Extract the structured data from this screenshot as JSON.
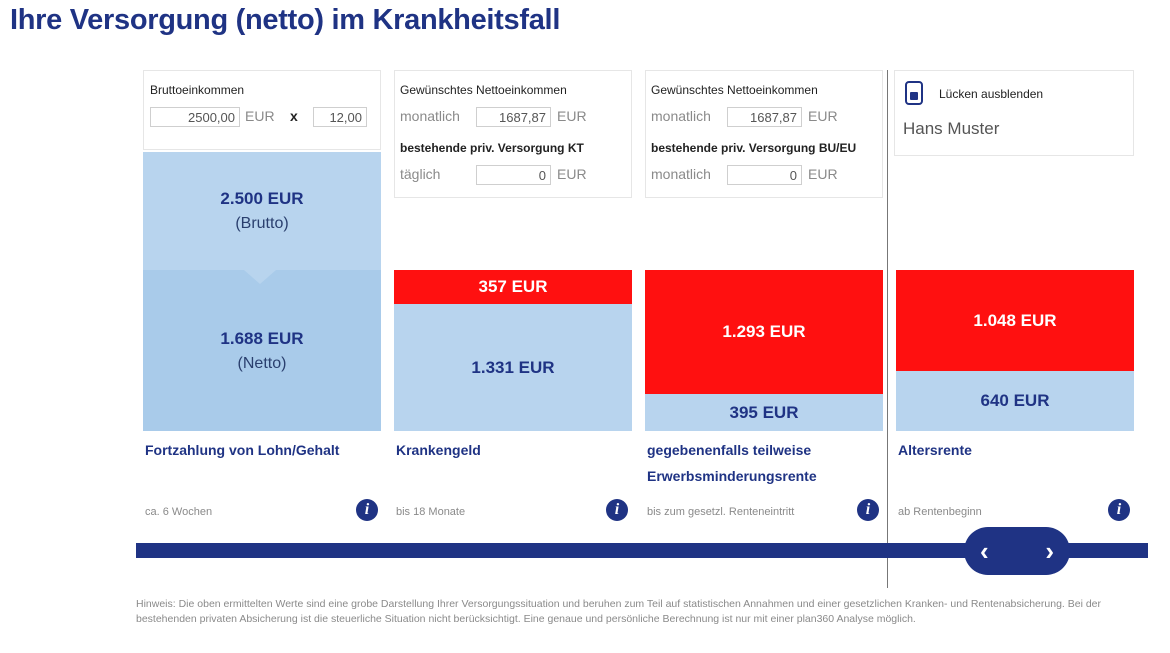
{
  "title": "Ihre Versorgung (netto) im Krankheitsfall",
  "columns": [
    {
      "header": {
        "label1": "Bruttoeinkommen",
        "gross_value": "2500,00",
        "currency": "EUR",
        "times": "x",
        "months_value": "12,00"
      },
      "top_amount": "2.500 EUR",
      "top_note": "(Brutto)",
      "bottom_amount": "1.688 EUR",
      "bottom_note": "(Netto)",
      "category": "Fortzahlung von Lohn/Gehalt",
      "duration": "ca. 6 Wochen"
    },
    {
      "header": {
        "label1": "Gewünschtes Nettoeinkommen",
        "period1": "monatlich",
        "value1": "1687,87",
        "currency1": "EUR",
        "label2": "bestehende priv. Versorgung KT",
        "period2": "täglich",
        "value2": "0",
        "currency2": "EUR"
      },
      "gap_amount": "357 EUR",
      "covered_amount": "1.331 EUR",
      "category": "Krankengeld",
      "duration": "bis 18 Monate"
    },
    {
      "header": {
        "label1": "Gewünschtes Nettoeinkommen",
        "period1": "monatlich",
        "value1": "1687,87",
        "currency1": "EUR",
        "label2": "bestehende priv. Versorgung BU/EU",
        "period2": "monatlich",
        "value2": "0",
        "currency2": "EUR"
      },
      "gap_amount": "1.293 EUR",
      "covered_amount": "395 EUR",
      "category": "gegebenenfalls teilweise Erwerbsminderungsrente",
      "duration": "bis zum gesetzl. Renteneintritt"
    },
    {
      "header": {
        "toggle_label": "Lücken ausblenden",
        "person_name": "Hans Muster"
      },
      "gap_amount": "1.048 EUR",
      "covered_amount": "640 EUR",
      "category": "Altersrente",
      "duration": "ab Rentenbeginn"
    }
  ],
  "info_symbol": "i",
  "slider": {
    "prev_symbol": "‹",
    "next_symbol": "›"
  },
  "note": "Hinweis: Die oben ermittelten Werte sind eine grobe Darstellung Ihrer Versorgungssituation und beruhen zum Teil auf statistischen Annahmen und einer gesetzlichen Kranken- und Rentenabsicherung. Bei der bestehenden privaten Absicherung ist die steuerliche Situation nicht berücksichtigt. Eine genaue und persönliche Berechnung ist nur mit einer plan360 Analyse möglich.",
  "colors": {
    "brand": "#1f3384",
    "gap": "#ff1010",
    "covered": "#b8d4ee"
  }
}
